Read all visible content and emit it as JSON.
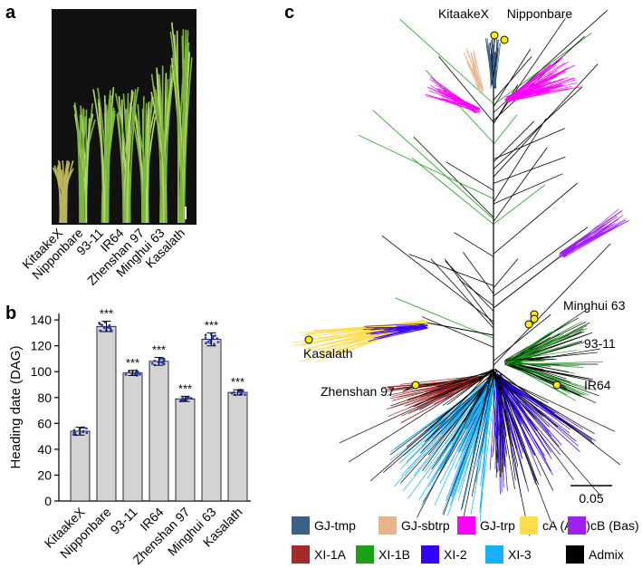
{
  "panel_labels": [
    "a",
    "b",
    "c"
  ],
  "photo": {
    "cultivars": [
      "KitaakeX",
      "Nipponbare",
      "93-11",
      "IR64",
      "Zhenshan 97",
      "Minghui 63",
      "Kasalath"
    ]
  },
  "chart_data": {
    "type": "bar",
    "y_label": "Heading date (DAG)",
    "categories": [
      "KitaakeX",
      "Nipponbare",
      "93-11",
      "IR64",
      "Zhenshan 97",
      "Minghui 63",
      "Kasalath"
    ],
    "values": [
      54,
      135,
      99,
      108,
      79,
      125,
      84
    ],
    "errors": [
      3,
      4,
      2,
      3,
      2,
      5,
      2
    ],
    "significance": [
      null,
      "***",
      "***",
      "***",
      "***",
      "***",
      "***"
    ],
    "color": "#d3d3d3",
    "ylim": [
      0,
      145
    ],
    "yticks": [
      0,
      20,
      40,
      60,
      80,
      100,
      120,
      140
    ]
  },
  "tree": {
    "scale_bar": 0.05,
    "cultivars": [
      "KitaakeX",
      "Nipponbare",
      "Minghui 63",
      "93-11",
      "IR64",
      "Kasalath",
      "Zhenshan 97"
    ],
    "legend": [
      {
        "name": "GJ-tmp",
        "color": "#3a6186"
      },
      {
        "name": "GJ-sbtrp",
        "color": "#e8b48c"
      },
      {
        "name": "GJ-trp",
        "color": "#ff00ff"
      },
      {
        "name": "cA (Aus)",
        "color": "#ffdc4a"
      },
      {
        "name": "cB (Bas)",
        "color": "#a020f0"
      },
      {
        "name": "XI-1A",
        "color": "#a52a2a"
      },
      {
        "name": "XI-1B",
        "color": "#1aa01a"
      },
      {
        "name": "XI-2",
        "color": "#3300ff"
      },
      {
        "name": "XI-3",
        "color": "#16b0ff"
      },
      {
        "name": "Admix",
        "color": "#000000"
      }
    ]
  }
}
